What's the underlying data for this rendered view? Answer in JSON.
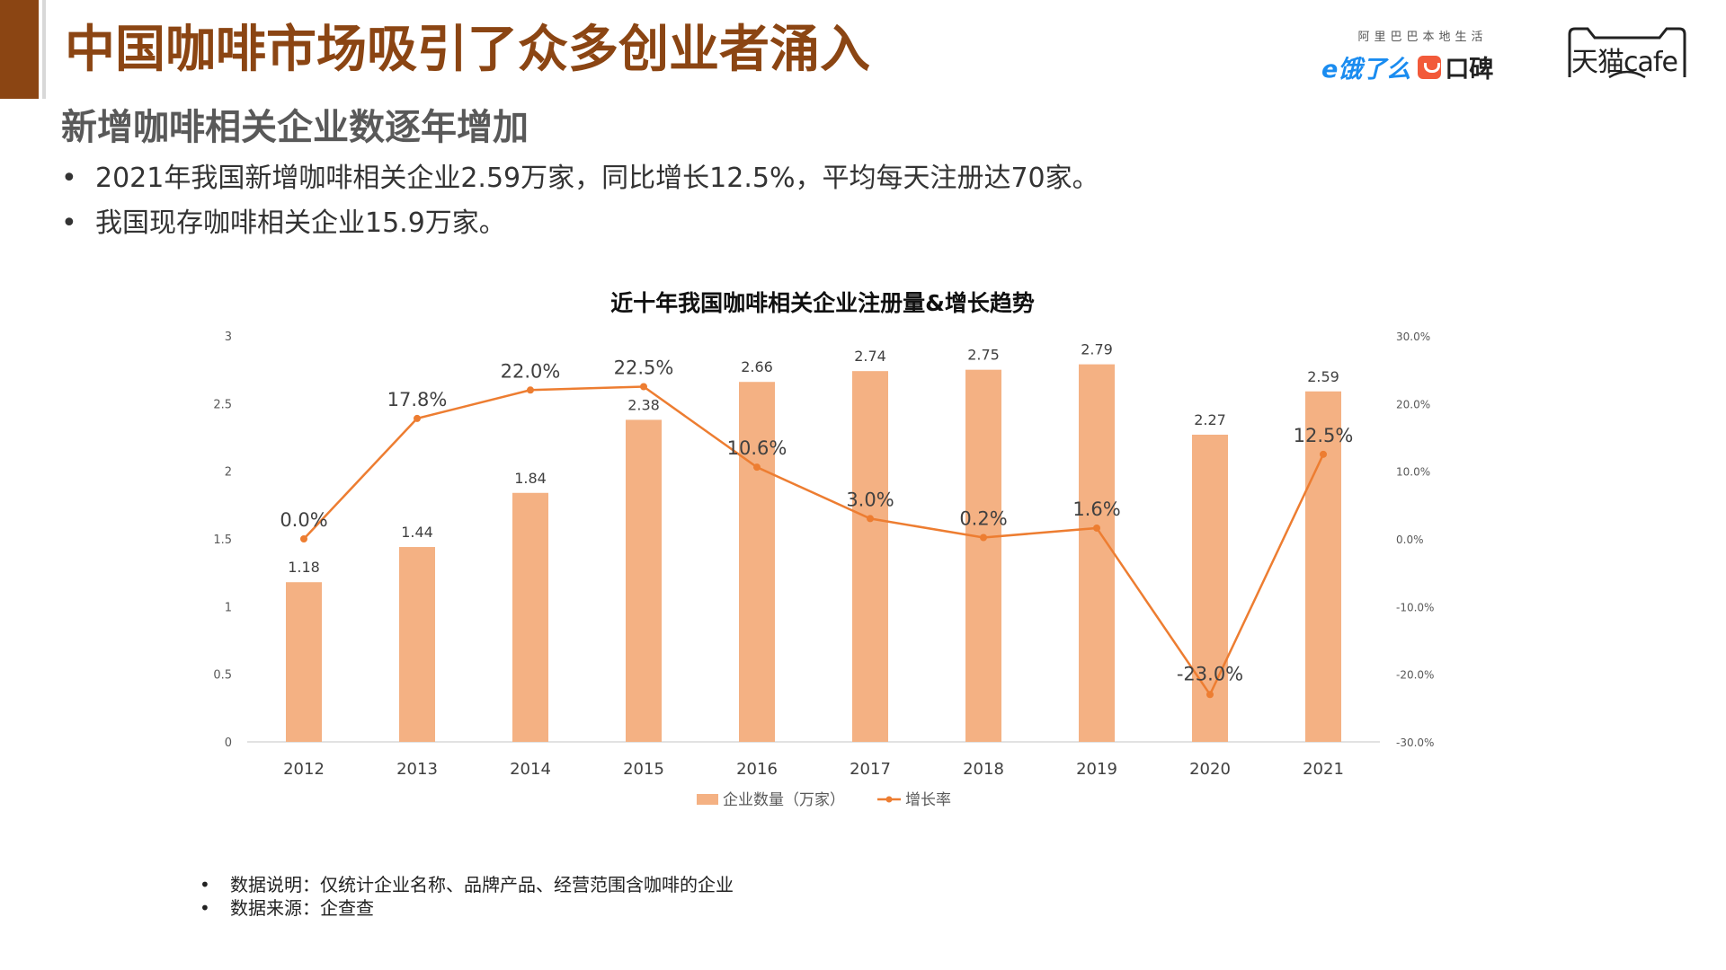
{
  "header": {
    "title": "中国咖啡市场吸引了众多创业者涌入",
    "subtitle": "新增咖啡相关企业数逐年增加",
    "bullets": [
      "2021年我国新增咖啡相关企业2.59万家，同比增长12.5%，平均每天注册达70家。",
      "我国现存咖啡相关企业15.9万家。"
    ]
  },
  "logos": {
    "ele_top": "阿里巴巴本地生活",
    "ele_name": "e饿了么",
    "koubei_name": "口碑",
    "tmall_name": "天猫cafe"
  },
  "colors": {
    "brand": "#8B4513",
    "bar": "#F4B183",
    "line": "#ED7D31",
    "subtitle": "#595959"
  },
  "chart_data": {
    "type": "bar",
    "title": "近十年我国咖啡相关企业注册量&增长趋势",
    "categories": [
      "2012",
      "2013",
      "2014",
      "2015",
      "2016",
      "2017",
      "2018",
      "2019",
      "2020",
      "2021"
    ],
    "series": [
      {
        "name": "企业数量（万家）",
        "type": "bar",
        "axis": "left",
        "values": [
          1.18,
          1.44,
          1.84,
          2.38,
          2.66,
          2.74,
          2.75,
          2.79,
          2.27,
          2.59
        ],
        "labels": [
          "1.18",
          "1.44",
          "1.84",
          "2.38",
          "2.66",
          "2.74",
          "2.75",
          "2.79",
          "2.27",
          "2.59"
        ]
      },
      {
        "name": "增长率",
        "type": "line",
        "axis": "right",
        "values": [
          0.0,
          17.8,
          22.0,
          22.5,
          10.6,
          3.0,
          0.2,
          1.6,
          -23.0,
          12.5
        ],
        "labels": [
          "0.0%",
          "17.8%",
          "22.0%",
          "22.5%",
          "10.6%",
          "3.0%",
          "0.2%",
          "1.6%",
          "-23.0%",
          "12.5%"
        ]
      }
    ],
    "y_left": {
      "min": 0,
      "max": 3,
      "ticks": [
        "0",
        "0.5",
        "1",
        "1.5",
        "2",
        "2.5",
        "3"
      ]
    },
    "y_right": {
      "min": -30,
      "max": 30,
      "ticks": [
        "-30.0%",
        "-20.0%",
        "-10.0%",
        "0.0%",
        "10.0%",
        "20.0%",
        "30.0%"
      ]
    },
    "grid": false,
    "legend": "bottom"
  },
  "footnotes": [
    "数据说明：仅统计企业名称、品牌产品、经营范围含咖啡的企业",
    "数据来源：企查查"
  ]
}
